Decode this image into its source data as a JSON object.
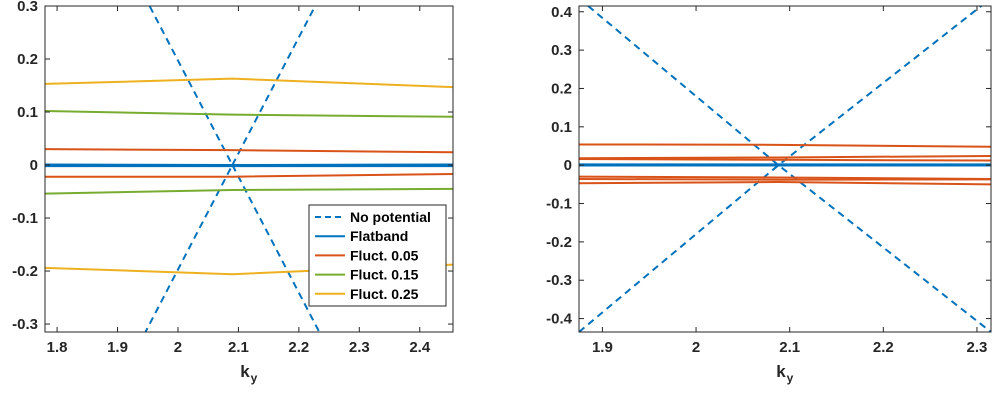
{
  "chart_data": [
    {
      "type": "line",
      "xlabel_main": "k",
      "xlabel_sub": "y",
      "xlim": [
        1.78,
        2.455
      ],
      "ylim": [
        -0.315,
        0.3
      ],
      "xticks": [
        1.8,
        1.9,
        2,
        2.1,
        2.2,
        2.3,
        2.4
      ],
      "xtick_labels": [
        "1.8",
        "1.9",
        "2",
        "2.1",
        "2.2",
        "2.3",
        "2.4"
      ],
      "yticks": [
        -0.3,
        -0.2,
        -0.1,
        0,
        0.1,
        0.2,
        0.3
      ],
      "ytick_labels": [
        "-0.3",
        "-0.2",
        "-0.1",
        "0",
        "0.1",
        "0.2",
        "0.3"
      ],
      "legend_position": "lower-right",
      "legend": [
        "No potential",
        "Flatband",
        "Fluct. 0.05",
        "Fluct. 0.15",
        "Fluct. 0.25"
      ],
      "series": [
        {
          "name": "No potential",
          "color": "#0072bd",
          "dash": true,
          "x": [
            1.88,
            2.09
          ],
          "y": [
            0.46,
            0.0
          ]
        },
        {
          "name": "No potential",
          "color": "#0072bd",
          "dash": true,
          "x": [
            1.88,
            2.09
          ],
          "y": [
            -0.46,
            0.0
          ]
        },
        {
          "name": "No potential",
          "color": "#0072bd",
          "dash": true,
          "x": [
            2.09,
            2.3
          ],
          "y": [
            0.0,
            0.46
          ]
        },
        {
          "name": "No potential",
          "color": "#0072bd",
          "dash": true,
          "x": [
            2.09,
            2.3
          ],
          "y": [
            0.0,
            -0.46
          ]
        },
        {
          "name": "Flatband",
          "color": "#0072bd",
          "dash": false,
          "x": [
            1.78,
            2.09,
            2.455
          ],
          "y": [
            0.001,
            0.0,
            0.001
          ]
        },
        {
          "name": "Flatband",
          "color": "#0072bd",
          "dash": false,
          "x": [
            1.78,
            2.09,
            2.455
          ],
          "y": [
            -0.002,
            -0.002,
            -0.002
          ]
        },
        {
          "name": "Fluct. 0.05",
          "color": "#d95319",
          "dash": false,
          "x": [
            1.78,
            2.09,
            2.455
          ],
          "y": [
            0.03,
            0.028,
            0.024
          ]
        },
        {
          "name": "Fluct. 0.05",
          "color": "#d95319",
          "dash": false,
          "x": [
            1.78,
            2.09,
            2.455
          ],
          "y": [
            -0.022,
            -0.022,
            -0.017
          ]
        },
        {
          "name": "Fluct. 0.15",
          "color": "#77ac30",
          "dash": false,
          "x": [
            1.78,
            2.09,
            2.455
          ],
          "y": [
            0.102,
            0.095,
            0.091
          ]
        },
        {
          "name": "Fluct. 0.15",
          "color": "#77ac30",
          "dash": false,
          "x": [
            1.78,
            2.09,
            2.455
          ],
          "y": [
            -0.054,
            -0.047,
            -0.045
          ]
        },
        {
          "name": "Fluct. 0.25",
          "color": "#edb120",
          "dash": false,
          "x": [
            1.78,
            2.09,
            2.455
          ],
          "y": [
            0.153,
            0.163,
            0.147
          ]
        },
        {
          "name": "Fluct. 0.25",
          "color": "#edb120",
          "dash": false,
          "x": [
            1.78,
            2.09,
            2.455
          ],
          "y": [
            -0.194,
            -0.206,
            -0.188
          ]
        }
      ]
    },
    {
      "type": "line",
      "xlabel_main": "k",
      "xlabel_sub": "y",
      "xlim": [
        1.875,
        2.315
      ],
      "ylim": [
        -0.435,
        0.415
      ],
      "xticks": [
        1.9,
        2,
        2.1,
        2.2,
        2.3
      ],
      "xtick_labels": [
        "1.9",
        "2",
        "2.1",
        "2.2",
        "2.3"
      ],
      "yticks": [
        -0.4,
        -0.3,
        -0.2,
        -0.1,
        0,
        0.1,
        0.2,
        0.3,
        0.4
      ],
      "ytick_labels": [
        "-0.4",
        "-0.3",
        "-0.2",
        "-0.1",
        "0",
        "0.1",
        "0.2",
        "0.3",
        "0.4"
      ],
      "series": [
        {
          "name": "No potential",
          "color": "#0072bd",
          "dash": true,
          "x": [
            1.875,
            2.088,
            2.315
          ],
          "y": [
            0.435,
            0.0,
            -0.435
          ]
        },
        {
          "name": "No potential",
          "color": "#0072bd",
          "dash": true,
          "x": [
            1.875,
            2.088,
            2.315
          ],
          "y": [
            -0.435,
            0.0,
            0.435
          ]
        },
        {
          "name": "Flatband",
          "color": "#0072bd",
          "dash": false,
          "x": [
            1.875,
            2.088,
            2.315
          ],
          "y": [
            0.002,
            0.002,
            0.002
          ]
        },
        {
          "name": "Flatband",
          "color": "#0072bd",
          "dash": false,
          "x": [
            1.875,
            2.088,
            2.315
          ],
          "y": [
            -0.001,
            -0.001,
            -0.001
          ]
        },
        {
          "name": "Fluct. 0.05",
          "color": "#d95319",
          "dash": false,
          "x": [
            1.875,
            2.088,
            2.315
          ],
          "y": [
            0.054,
            0.053,
            0.048
          ]
        },
        {
          "name": "Fluct. 0.05",
          "color": "#d95319",
          "dash": false,
          "x": [
            1.875,
            2.088,
            2.315
          ],
          "y": [
            0.018,
            0.02,
            0.024
          ]
        },
        {
          "name": "Fluct. 0.05",
          "color": "#d95319",
          "dash": false,
          "x": [
            1.875,
            2.088,
            2.315
          ],
          "y": [
            0.016,
            0.014,
            0.012
          ]
        },
        {
          "name": "Fluct. 0.05",
          "color": "#d95319",
          "dash": false,
          "x": [
            1.875,
            2.088,
            2.315
          ],
          "y": [
            -0.03,
            -0.032,
            -0.036
          ]
        },
        {
          "name": "Fluct. 0.05",
          "color": "#d95319",
          "dash": false,
          "x": [
            1.875,
            2.088,
            2.315
          ],
          "y": [
            -0.036,
            -0.038,
            -0.037
          ]
        },
        {
          "name": "Fluct. 0.05",
          "color": "#d95319",
          "dash": false,
          "x": [
            1.875,
            2.088,
            2.315
          ],
          "y": [
            -0.047,
            -0.044,
            -0.05
          ]
        }
      ]
    }
  ]
}
